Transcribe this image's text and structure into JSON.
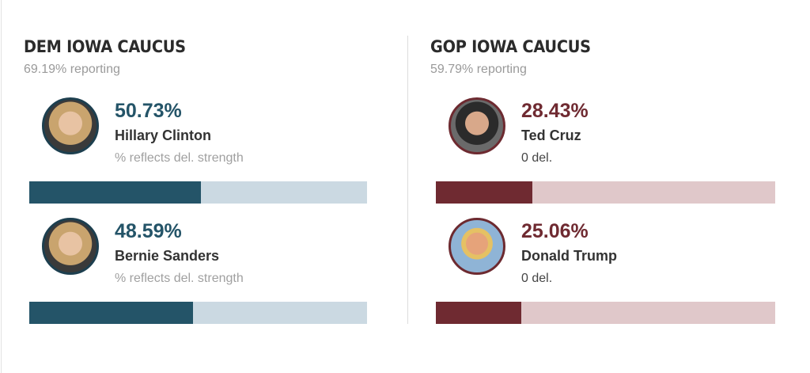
{
  "dem": {
    "title": "DEM IOWA CAUCUS",
    "reporting": "69.19% reporting",
    "accent": "#245468",
    "candidates": [
      {
        "pct": "50.73%",
        "value": 50.73,
        "name": "Hillary Clinton",
        "note": "% reflects del. strength"
      },
      {
        "pct": "48.59%",
        "value": 48.59,
        "name": "Bernie Sanders",
        "note": "% reflects del. strength"
      }
    ]
  },
  "gop": {
    "title": "GOP IOWA CAUCUS",
    "reporting": "59.79% reporting",
    "accent": "#6f2a31",
    "candidates": [
      {
        "pct": "28.43%",
        "value": 28.43,
        "name": "Ted Cruz",
        "note": "0 del."
      },
      {
        "pct": "25.06%",
        "value": 25.06,
        "name": "Donald Trump",
        "note": "0 del."
      }
    ]
  }
}
